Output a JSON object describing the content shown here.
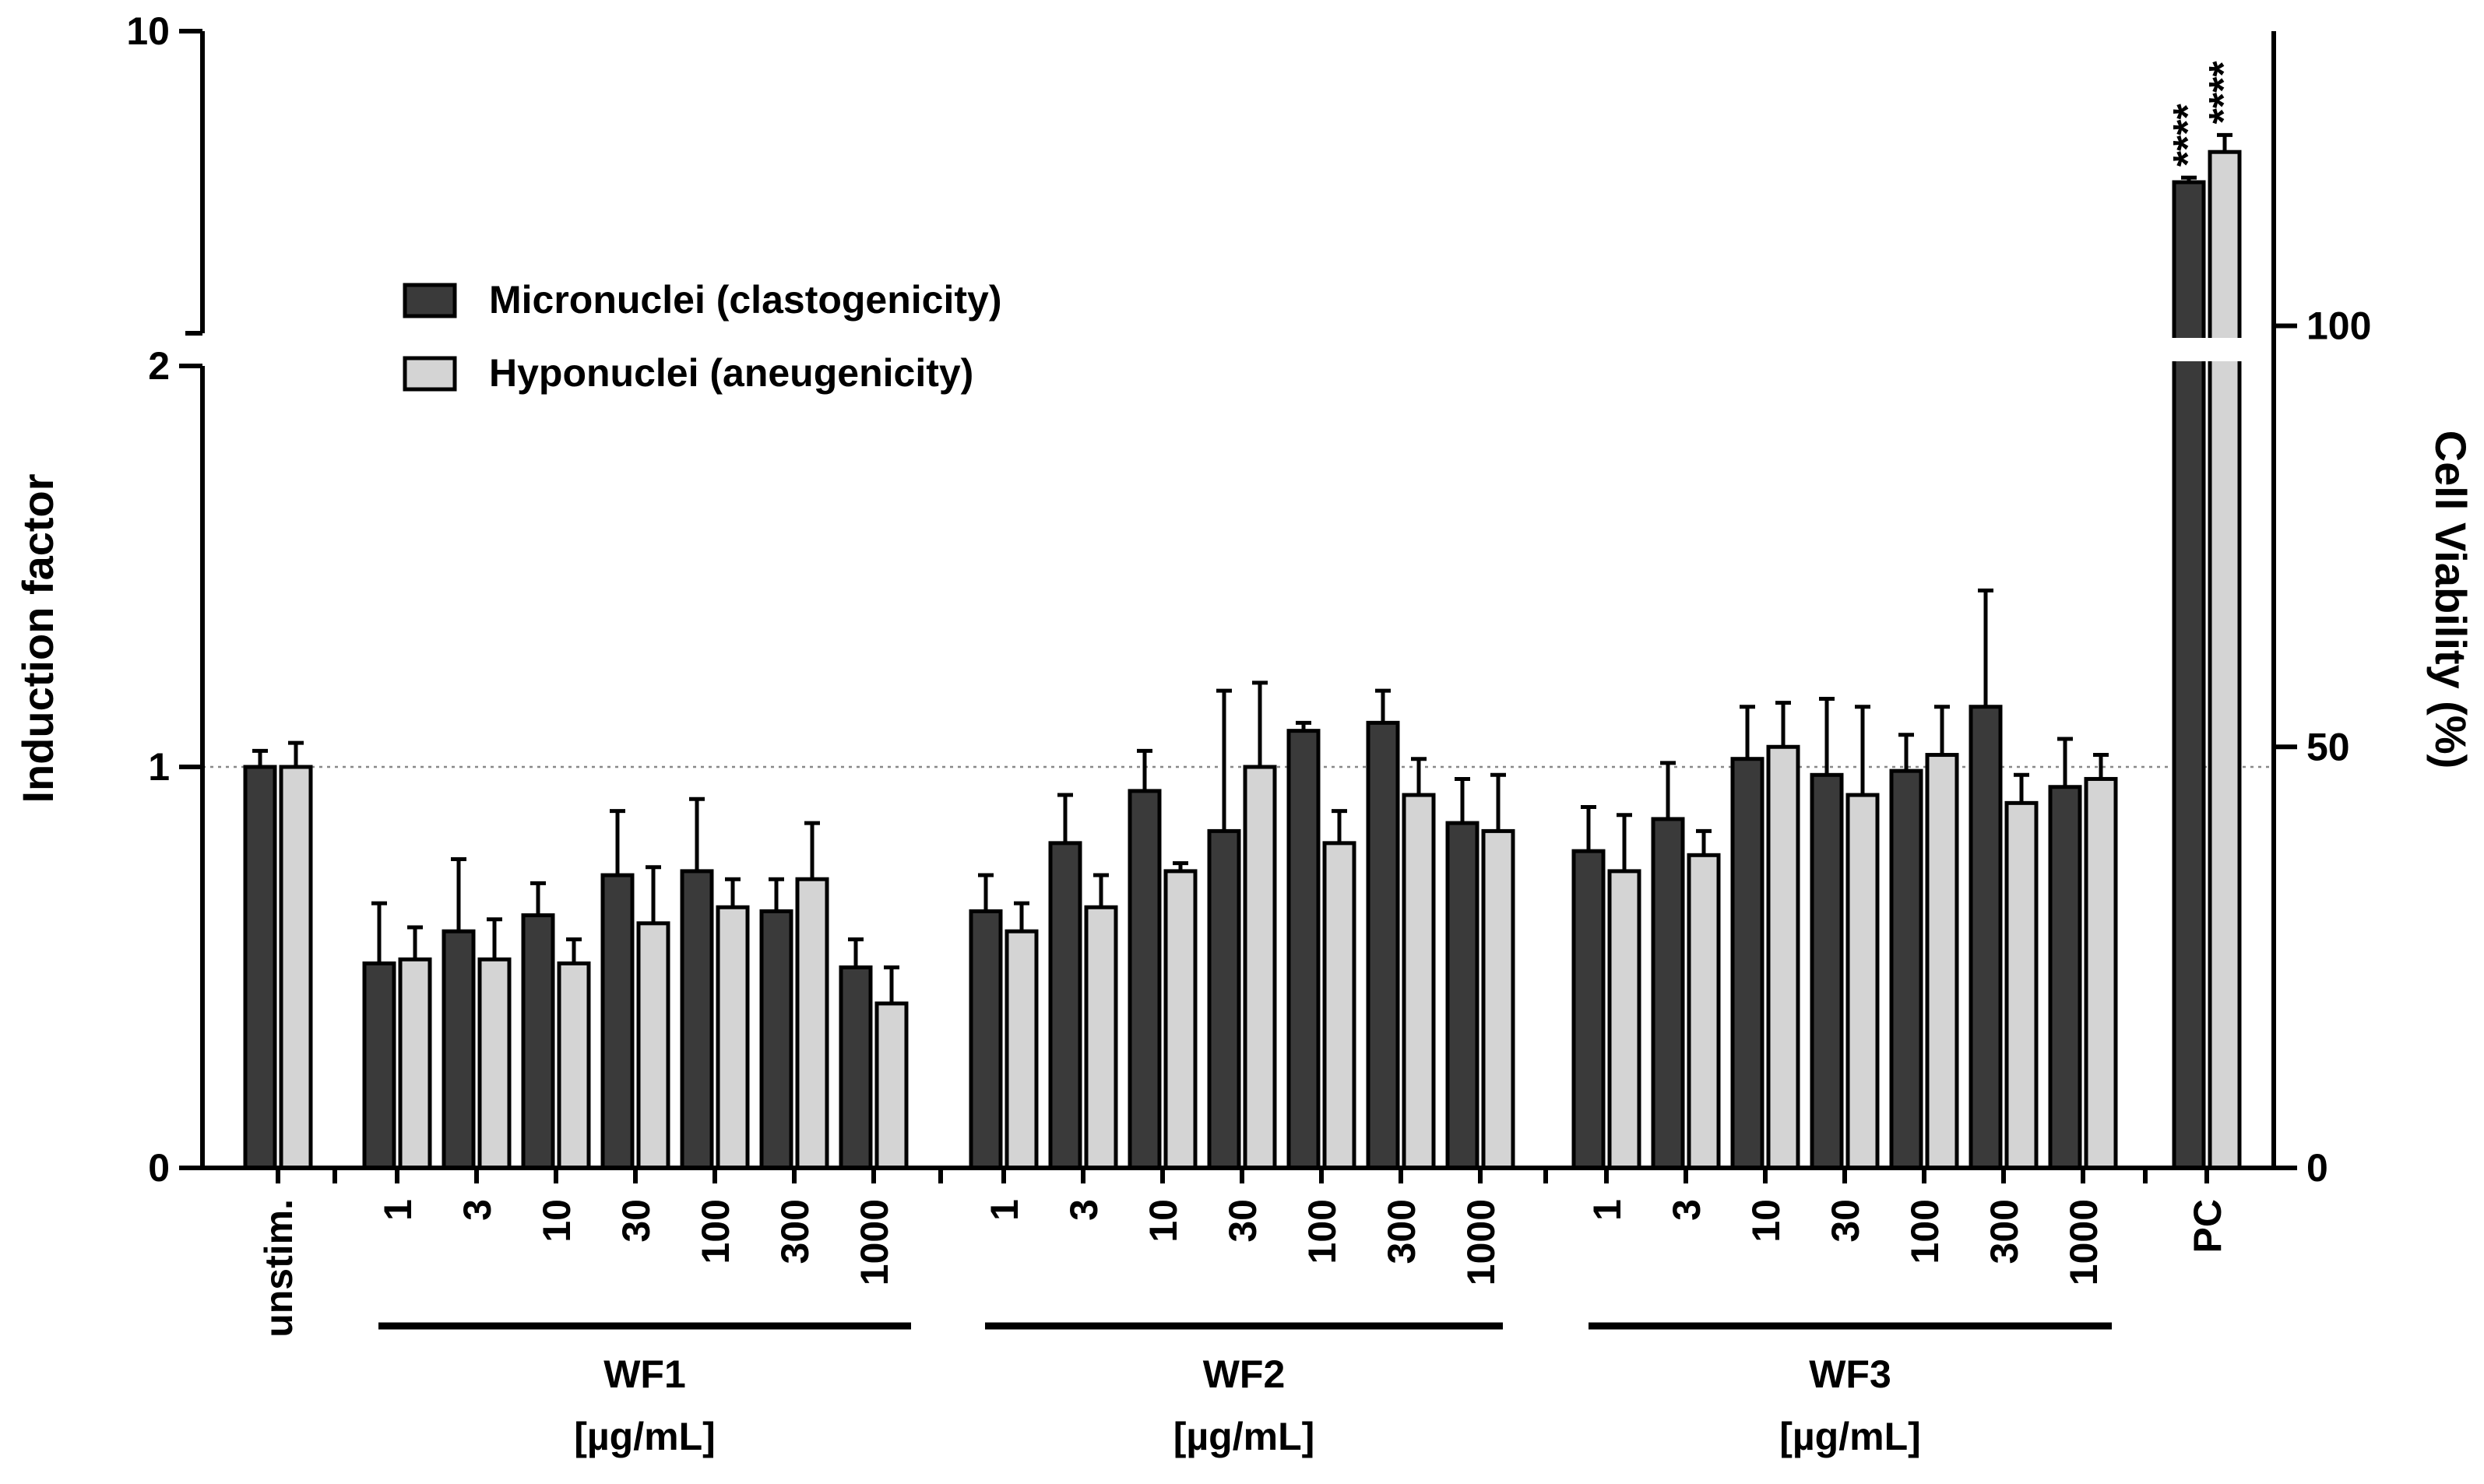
{
  "chart_data": {
    "type": "bar",
    "ylabel": "Induction factor",
    "y2label": "Cell Viability (%)",
    "ylim": [
      0,
      10
    ],
    "y_axis_break": [
      2,
      10
    ],
    "y_ticks": [
      "0",
      "1",
      "2",
      "10"
    ],
    "y2_ticks": [
      "0",
      "50",
      "100"
    ],
    "y2lim": [
      0,
      135
    ],
    "reference_line": 1,
    "legend": {
      "position": "top-left",
      "entries": [
        {
          "name": "Micronuclei (clastogenicity)",
          "color": "#3a3a3a"
        },
        {
          "name": "Hyponuclei (aneugenicity)",
          "color": "#d4d4d4"
        }
      ]
    },
    "categories": [
      "unstim.",
      "1",
      "3",
      "10",
      "30",
      "100",
      "300",
      "1000",
      "1",
      "3",
      "10",
      "30",
      "100",
      "300",
      "1000",
      "1",
      "3",
      "10",
      "30",
      "100",
      "300",
      "1000",
      "PC"
    ],
    "category_groups": [
      0,
      1,
      1,
      1,
      1,
      1,
      1,
      1,
      2,
      2,
      2,
      2,
      2,
      2,
      2,
      3,
      3,
      3,
      3,
      3,
      3,
      3,
      4
    ],
    "groups": [
      {
        "label": "",
        "unit": ""
      },
      {
        "label": "WF1",
        "unit": "[µg/mL]"
      },
      {
        "label": "WF2",
        "unit": "[µg/mL]"
      },
      {
        "label": "WF3",
        "unit": "[µg/mL]"
      },
      {
        "label": "",
        "unit": ""
      }
    ],
    "series": [
      {
        "name": "Micronuclei (clastogenicity)",
        "color": "#3a3a3a",
        "values": [
          1.0,
          0.51,
          0.59,
          0.63,
          0.73,
          0.74,
          0.64,
          0.5,
          0.64,
          0.81,
          0.94,
          0.84,
          1.09,
          1.11,
          0.86,
          0.79,
          0.87,
          1.02,
          0.98,
          0.99,
          1.15,
          0.95,
          6.0
        ],
        "errors": [
          0.04,
          0.15,
          0.18,
          0.08,
          0.16,
          0.18,
          0.08,
          0.07,
          0.09,
          0.12,
          0.1,
          0.35,
          0.02,
          0.08,
          0.11,
          0.11,
          0.14,
          0.13,
          0.19,
          0.09,
          0.29,
          0.12,
          0.12
        ]
      },
      {
        "name": "Hyponuclei (aneugenicity)",
        "color": "#d4d4d4",
        "values": [
          1.0,
          0.52,
          0.52,
          0.51,
          0.61,
          0.65,
          0.72,
          0.41,
          0.59,
          0.65,
          0.74,
          1.0,
          0.81,
          0.93,
          0.84,
          0.74,
          0.78,
          1.05,
          0.93,
          1.03,
          0.91,
          0.97,
          6.8
        ],
        "errors": [
          0.06,
          0.08,
          0.1,
          0.06,
          0.14,
          0.07,
          0.14,
          0.09,
          0.07,
          0.08,
          0.02,
          0.21,
          0.08,
          0.09,
          0.14,
          0.14,
          0.06,
          0.11,
          0.22,
          0.12,
          0.07,
          0.06,
          0.45
        ]
      }
    ],
    "annotations": [
      {
        "category": "PC",
        "series": "Micronuclei (clastogenicity)",
        "text": "****"
      },
      {
        "category": "PC",
        "series": "Hyponuclei (aneugenicity)",
        "text": "****"
      }
    ]
  }
}
